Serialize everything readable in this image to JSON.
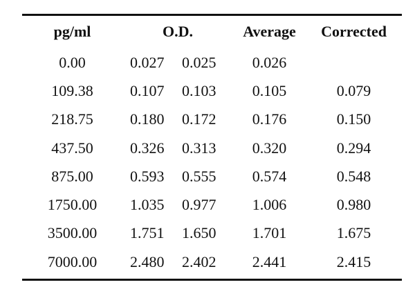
{
  "table": {
    "headers": {
      "concentration": "pg/ml",
      "od": "O.D.",
      "average": "Average",
      "corrected": "Corrected"
    },
    "rows": [
      {
        "conc": "0.00",
        "od1": "0.027",
        "od2": "0.025",
        "avg": "0.026",
        "corrected": ""
      },
      {
        "conc": "109.38",
        "od1": "0.107",
        "od2": "0.103",
        "avg": "0.105",
        "corrected": "0.079"
      },
      {
        "conc": "218.75",
        "od1": "0.180",
        "od2": "0.172",
        "avg": "0.176",
        "corrected": "0.150"
      },
      {
        "conc": "437.50",
        "od1": "0.326",
        "od2": "0.313",
        "avg": "0.320",
        "corrected": "0.294"
      },
      {
        "conc": "875.00",
        "od1": "0.593",
        "od2": "0.555",
        "avg": "0.574",
        "corrected": "0.548"
      },
      {
        "conc": "1750.00",
        "od1": "1.035",
        "od2": "0.977",
        "avg": "1.006",
        "corrected": "0.980"
      },
      {
        "conc": "3500.00",
        "od1": "1.751",
        "od2": "1.650",
        "avg": "1.701",
        "corrected": "1.675"
      },
      {
        "conc": "7000.00",
        "od1": "2.480",
        "od2": "2.402",
        "avg": "2.441",
        "corrected": "2.415"
      }
    ]
  }
}
